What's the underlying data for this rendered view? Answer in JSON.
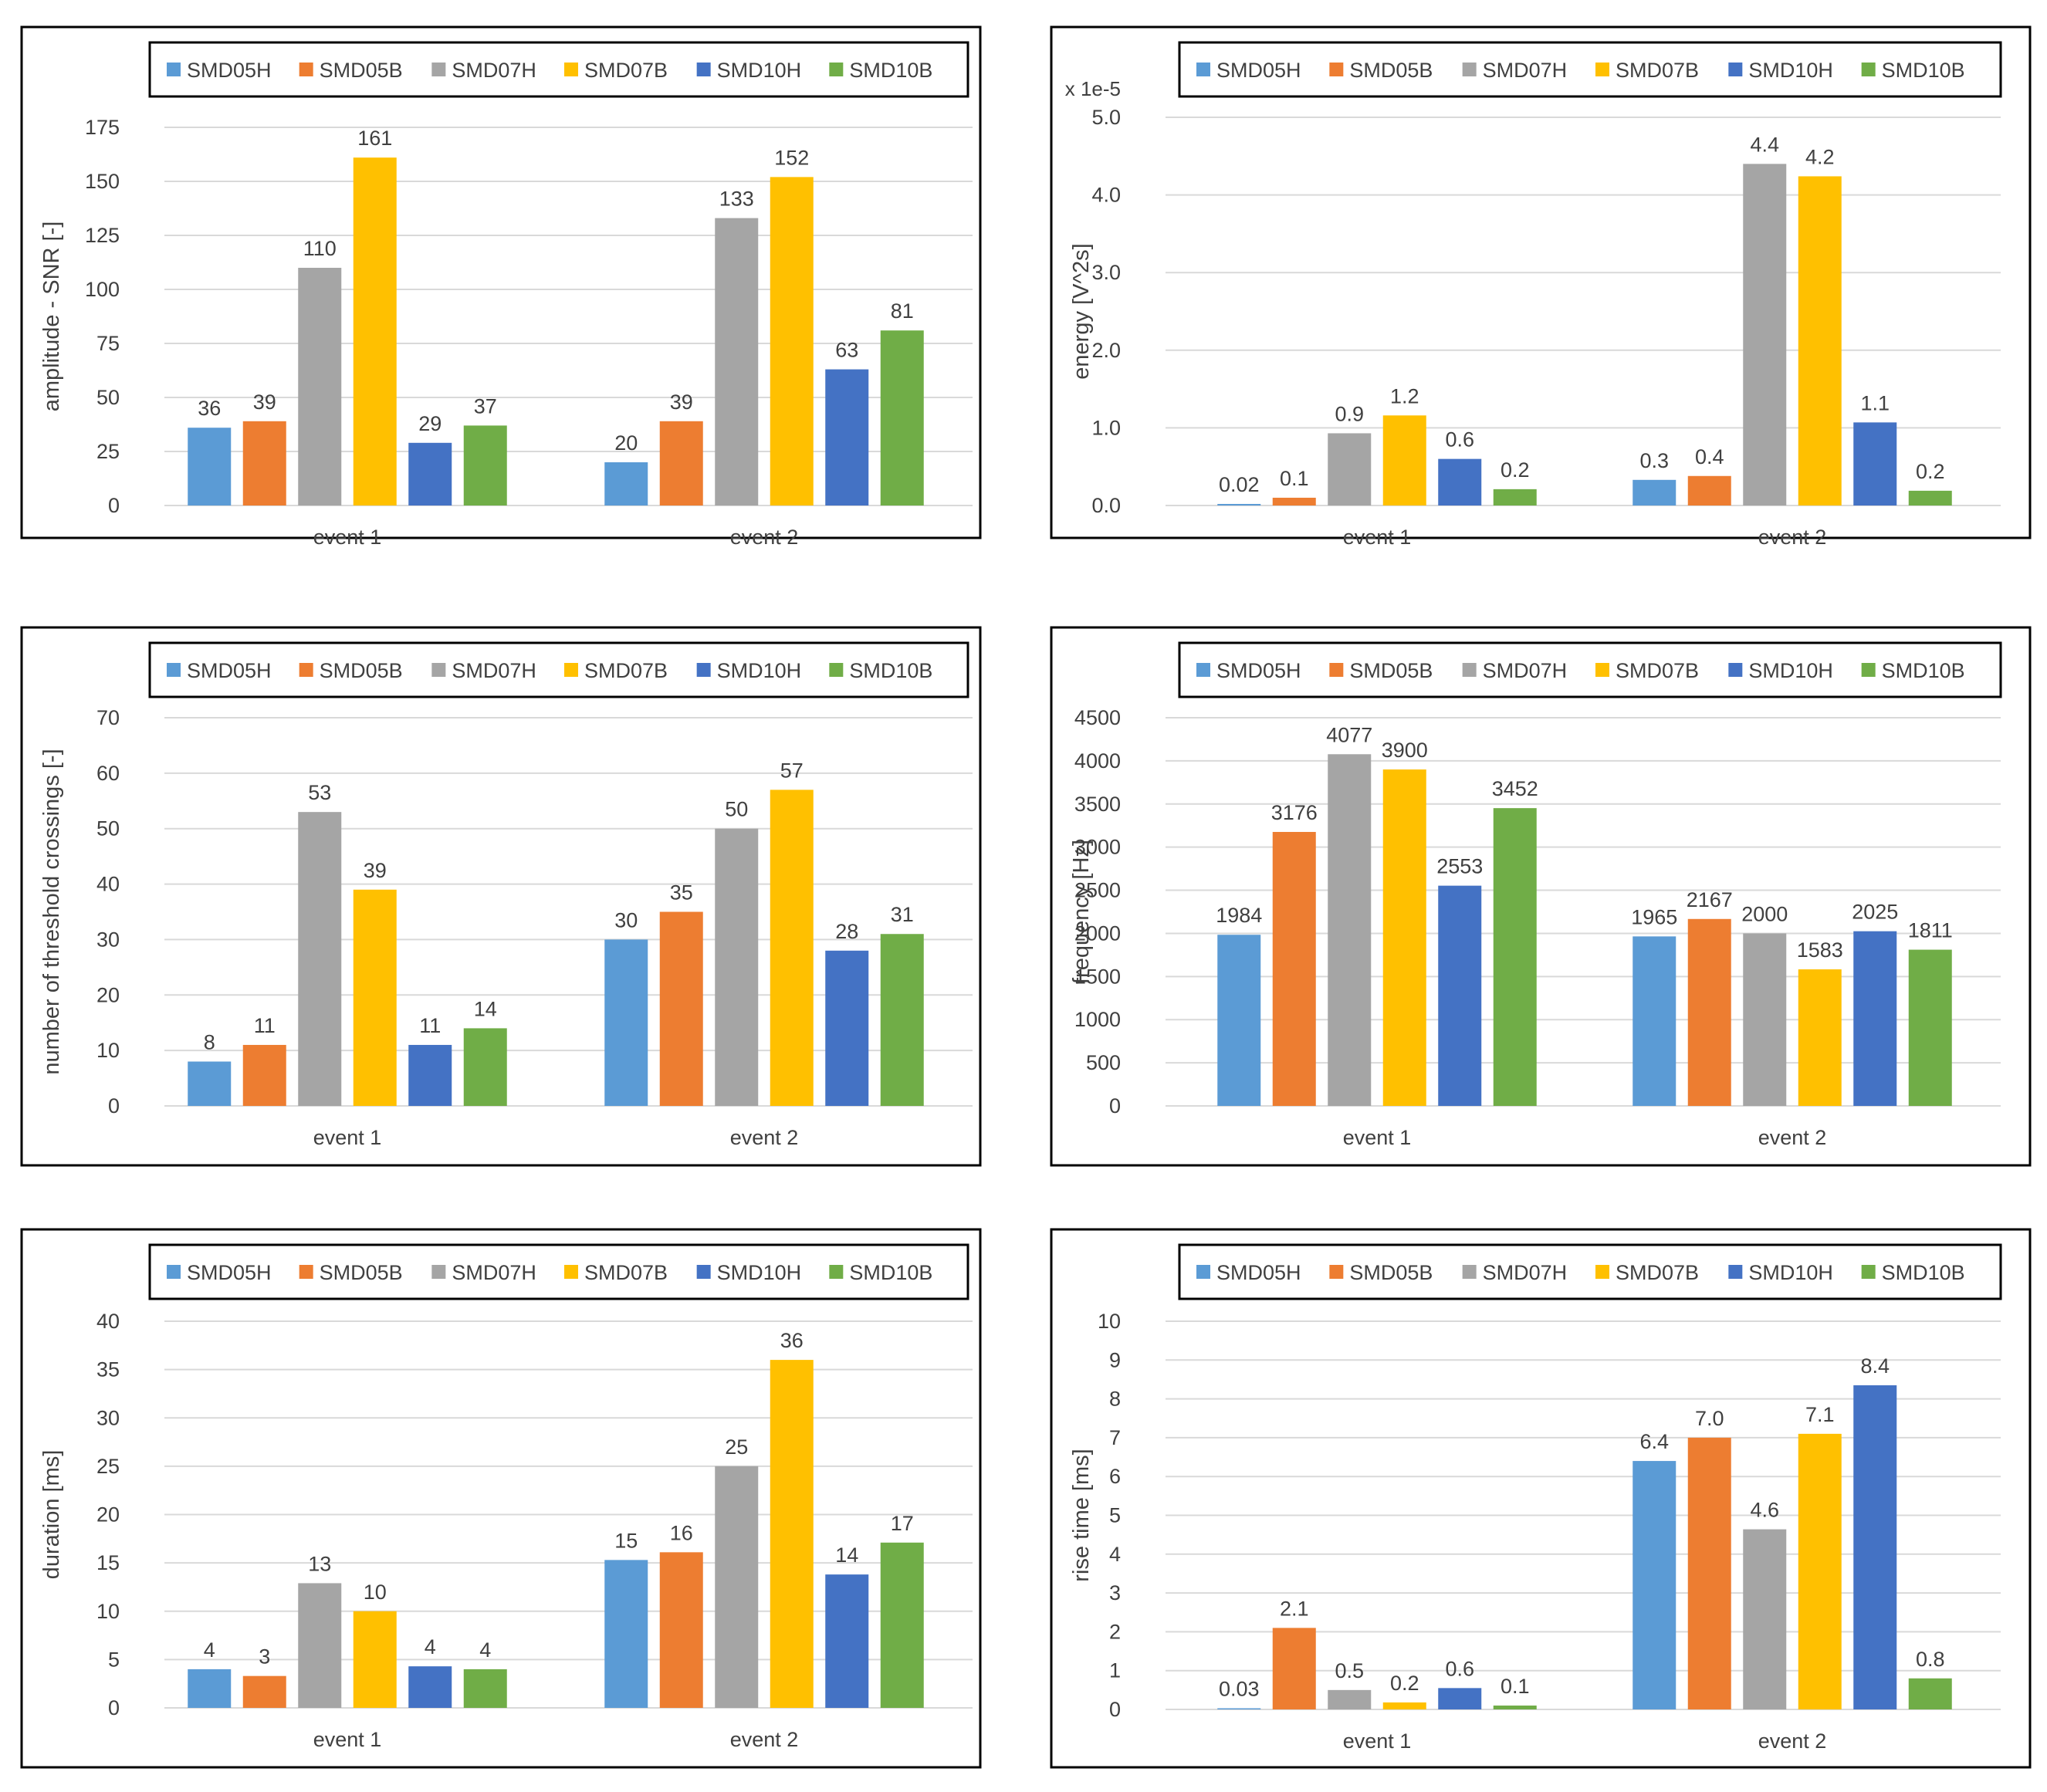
{
  "colors": {
    "SMD05H": "#5b9bd5",
    "SMD05B": "#ed7d31",
    "SMD07H": "#a5a5a5",
    "SMD07B": "#ffc000",
    "SMD10H": "#4472c4",
    "SMD10B": "#70ad47"
  },
  "chart_data": [
    {
      "type": "bar",
      "categories": [
        "event 1",
        "event 2"
      ],
      "ylabel": "amplitude - SNR [-]",
      "multiplier": "",
      "ylim": [
        0,
        175
      ],
      "yticks": [
        "0",
        "25",
        "50",
        "75",
        "100",
        "125",
        "150",
        "175"
      ],
      "legend": "top",
      "grid": true,
      "series": [
        {
          "name": "SMD05H",
          "values": [
            36,
            20
          ],
          "labels": [
            "36",
            "20"
          ]
        },
        {
          "name": "SMD05B",
          "values": [
            39,
            39
          ],
          "labels": [
            "39",
            "39"
          ]
        },
        {
          "name": "SMD07H",
          "values": [
            110,
            133
          ],
          "labels": [
            "110",
            "133"
          ]
        },
        {
          "name": "SMD07B",
          "values": [
            161,
            152
          ],
          "labels": [
            "161",
            "152"
          ]
        },
        {
          "name": "SMD10H",
          "values": [
            29,
            63
          ],
          "labels": [
            "29",
            "63"
          ]
        },
        {
          "name": "SMD10B",
          "values": [
            37,
            81
          ],
          "labels": [
            "37",
            "81"
          ]
        }
      ]
    },
    {
      "type": "bar",
      "categories": [
        "event 1",
        "event 2"
      ],
      "ylabel": "energy [V^2s]",
      "multiplier": "x 1e-5",
      "ylim": [
        0,
        5
      ],
      "yticks": [
        "0.0",
        "1.0",
        "2.0",
        "3.0",
        "4.0",
        "5.0"
      ],
      "legend": "top",
      "grid": true,
      "series": [
        {
          "name": "SMD05H",
          "values": [
            0.02,
            0.33
          ],
          "labels": [
            "0.02",
            "0.3"
          ]
        },
        {
          "name": "SMD05B",
          "values": [
            0.1,
            0.38
          ],
          "labels": [
            "0.1",
            "0.4"
          ]
        },
        {
          "name": "SMD07H",
          "values": [
            0.93,
            4.4
          ],
          "labels": [
            "0.9",
            "4.4"
          ]
        },
        {
          "name": "SMD07B",
          "values": [
            1.16,
            4.24
          ],
          "labels": [
            "1.2",
            "4.2"
          ]
        },
        {
          "name": "SMD10H",
          "values": [
            0.6,
            1.07
          ],
          "labels": [
            "0.6",
            "1.1"
          ]
        },
        {
          "name": "SMD10B",
          "values": [
            0.21,
            0.19
          ],
          "labels": [
            "0.2",
            "0.2"
          ]
        }
      ]
    },
    {
      "type": "bar",
      "categories": [
        "event 1",
        "event 2"
      ],
      "ylabel": "number of threshold crossings [-]",
      "multiplier": "",
      "ylim": [
        0,
        70
      ],
      "yticks": [
        "0",
        "10",
        "20",
        "30",
        "40",
        "50",
        "60",
        "70"
      ],
      "legend": "top",
      "grid": true,
      "series": [
        {
          "name": "SMD05H",
          "values": [
            8,
            30
          ],
          "labels": [
            "8",
            "30"
          ]
        },
        {
          "name": "SMD05B",
          "values": [
            11,
            35
          ],
          "labels": [
            "11",
            "35"
          ]
        },
        {
          "name": "SMD07H",
          "values": [
            53,
            50
          ],
          "labels": [
            "53",
            "50"
          ]
        },
        {
          "name": "SMD07B",
          "values": [
            39,
            57
          ],
          "labels": [
            "39",
            "57"
          ]
        },
        {
          "name": "SMD10H",
          "values": [
            11,
            28
          ],
          "labels": [
            "11",
            "28"
          ]
        },
        {
          "name": "SMD10B",
          "values": [
            14,
            31
          ],
          "labels": [
            "14",
            "31"
          ]
        }
      ]
    },
    {
      "type": "bar",
      "categories": [
        "event 1",
        "event 2"
      ],
      "ylabel": "frequency [Hz]",
      "multiplier": "",
      "ylim": [
        0,
        4500
      ],
      "yticks": [
        "0",
        "500",
        "1000",
        "1500",
        "2000",
        "2500",
        "3000",
        "3500",
        "4000",
        "4500"
      ],
      "legend": "top",
      "grid": true,
      "series": [
        {
          "name": "SMD05H",
          "values": [
            1984,
            1965
          ],
          "labels": [
            "1984",
            "1965"
          ]
        },
        {
          "name": "SMD05B",
          "values": [
            3176,
            2167
          ],
          "labels": [
            "3176",
            "2167"
          ]
        },
        {
          "name": "SMD07H",
          "values": [
            4077,
            2000
          ],
          "labels": [
            "4077",
            "2000"
          ]
        },
        {
          "name": "SMD07B",
          "values": [
            3900,
            1583
          ],
          "labels": [
            "3900",
            "1583"
          ]
        },
        {
          "name": "SMD10H",
          "values": [
            2553,
            2025
          ],
          "labels": [
            "2553",
            "2025"
          ]
        },
        {
          "name": "SMD10B",
          "values": [
            3452,
            1811
          ],
          "labels": [
            "3452",
            "1811"
          ]
        }
      ]
    },
    {
      "type": "bar",
      "categories": [
        "event 1",
        "event 2"
      ],
      "ylabel": "duration [ms]",
      "multiplier": "",
      "ylim": [
        0,
        40
      ],
      "yticks": [
        "0",
        "5",
        "10",
        "15",
        "20",
        "25",
        "30",
        "35",
        "40"
      ],
      "legend": "top",
      "grid": true,
      "series": [
        {
          "name": "SMD05H",
          "values": [
            4,
            15.3
          ],
          "labels": [
            "4",
            "15"
          ]
        },
        {
          "name": "SMD05B",
          "values": [
            3.3,
            16.1
          ],
          "labels": [
            "3",
            "16"
          ]
        },
        {
          "name": "SMD07H",
          "values": [
            12.9,
            25
          ],
          "labels": [
            "13",
            "25"
          ]
        },
        {
          "name": "SMD07B",
          "values": [
            10,
            36
          ],
          "labels": [
            "10",
            "36"
          ]
        },
        {
          "name": "SMD10H",
          "values": [
            4.3,
            13.8
          ],
          "labels": [
            "4",
            "14"
          ]
        },
        {
          "name": "SMD10B",
          "values": [
            4,
            17.1
          ],
          "labels": [
            "4",
            "17"
          ]
        }
      ]
    },
    {
      "type": "bar",
      "categories": [
        "event 1",
        "event 2"
      ],
      "ylabel": "rise time [ms]",
      "multiplier": "",
      "ylim": [
        0,
        10
      ],
      "yticks": [
        "0",
        "1",
        "2",
        "3",
        "4",
        "5",
        "6",
        "7",
        "8",
        "9",
        "10"
      ],
      "legend": "top",
      "grid": true,
      "series": [
        {
          "name": "SMD05H",
          "values": [
            0.03,
            6.4
          ],
          "labels": [
            "0.03",
            "6.4"
          ]
        },
        {
          "name": "SMD05B",
          "values": [
            2.1,
            7.0
          ],
          "labels": [
            "2.1",
            "7.0"
          ]
        },
        {
          "name": "SMD07H",
          "values": [
            0.5,
            4.64
          ],
          "labels": [
            "0.5",
            "4.6"
          ]
        },
        {
          "name": "SMD07B",
          "values": [
            0.18,
            7.1
          ],
          "labels": [
            "0.2",
            "7.1"
          ]
        },
        {
          "name": "SMD10H",
          "values": [
            0.55,
            8.35
          ],
          "labels": [
            "0.6",
            "8.4"
          ]
        },
        {
          "name": "SMD10B",
          "values": [
            0.1,
            0.8
          ],
          "labels": [
            "0.1",
            "0.8"
          ]
        }
      ]
    }
  ]
}
